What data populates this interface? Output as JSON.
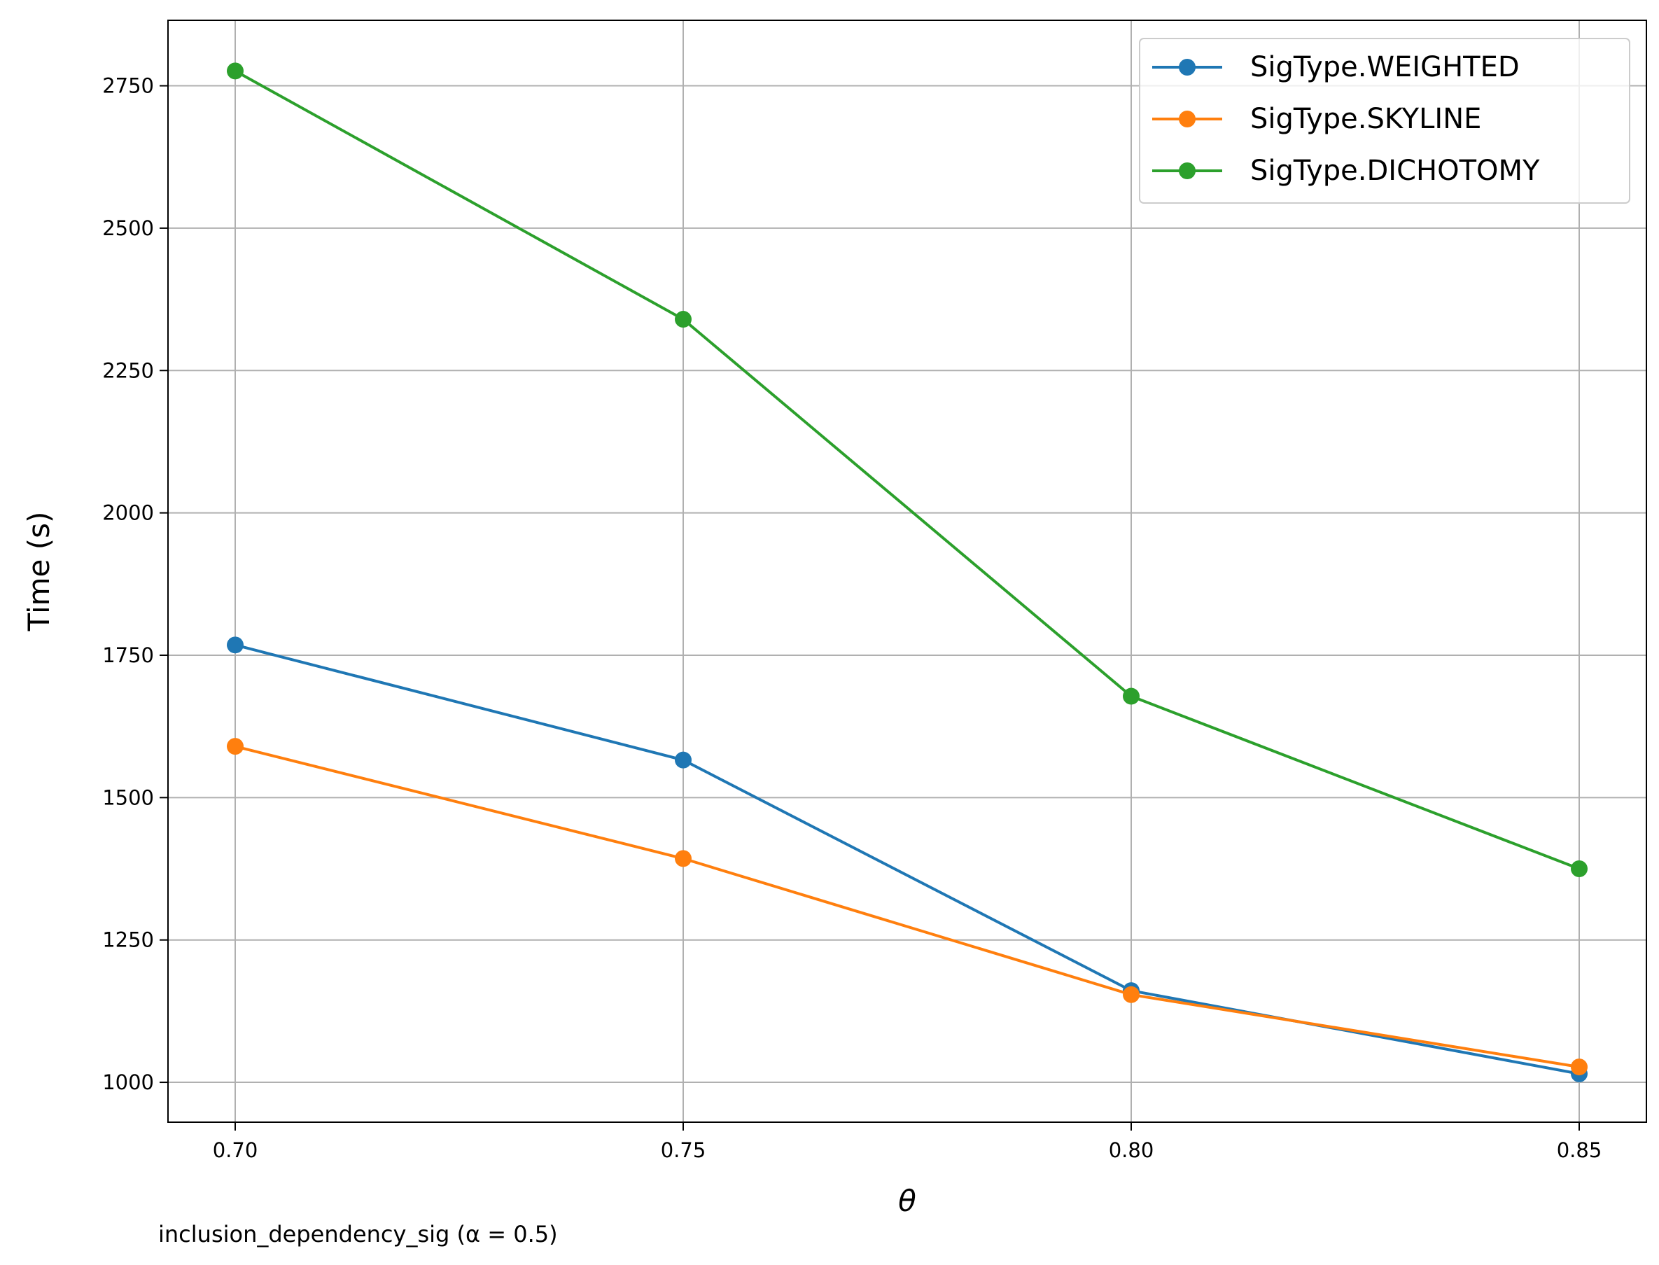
{
  "chart_data": {
    "type": "line",
    "title": "",
    "xlabel": "θ",
    "ylabel": "Time (s)",
    "caption": "inclusion_dependency_sig (α = 0.5)",
    "x": [
      0.7,
      0.75,
      0.8,
      0.85
    ],
    "xticks": [
      "0.70",
      "0.75",
      "0.80",
      "0.85"
    ],
    "yticks": [
      "1000",
      "1250",
      "1500",
      "1750",
      "2000",
      "2250",
      "2500",
      "2750"
    ],
    "ytick_values": [
      1000,
      1250,
      1500,
      1750,
      2000,
      2250,
      2500,
      2750
    ],
    "xlim": [
      0.6925,
      0.8575
    ],
    "ylim": [
      930,
      2865
    ],
    "grid": true,
    "legend_position": "top-right",
    "series": [
      {
        "name": "SigType.WEIGHTED",
        "color": "#1f77b4",
        "values": [
          1768,
          1566,
          1161,
          1015
        ]
      },
      {
        "name": "SigType.SKYLINE",
        "color": "#ff7f0e",
        "values": [
          1590,
          1393,
          1154,
          1027
        ]
      },
      {
        "name": "SigType.DICHOTOMY",
        "color": "#2ca02c",
        "values": [
          2776,
          2340,
          1678,
          1375
        ]
      }
    ]
  }
}
